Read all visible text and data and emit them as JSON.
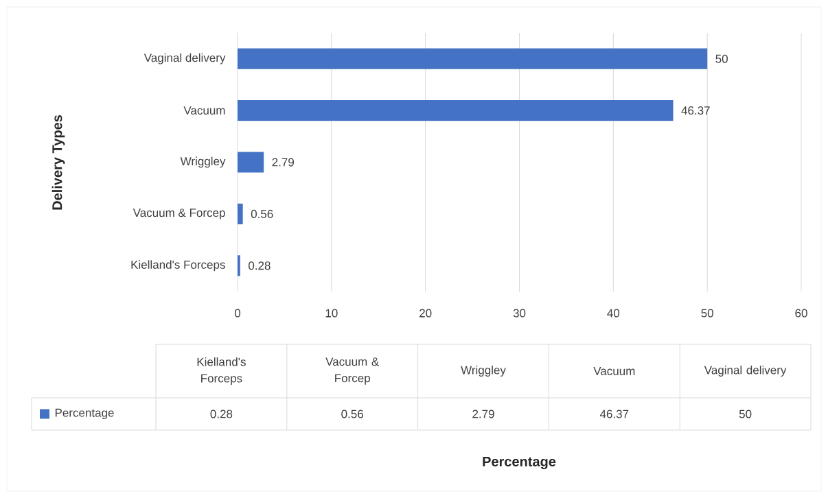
{
  "chart_data": [
    {
      "type": "bar",
      "orientation": "horizontal",
      "xlabel": "Percentage",
      "ylabel": "Delivery Types",
      "categories": [
        "Vaginal delivery",
        "Vacuum",
        "Wriggley",
        "Vacuum & Forcep",
        "Kielland's Forceps"
      ],
      "series": [
        {
          "color": "#4472c4",
          "values": [
            50,
            46.37,
            2.79,
            0.56,
            0.28
          ]
        }
      ],
      "xlim": [
        0,
        60
      ],
      "xticks": [
        0,
        10,
        20,
        30,
        40,
        50,
        60
      ],
      "grid": "x",
      "data_labels": true
    },
    {
      "type": "other",
      "categories": [
        "Kielland's Forceps",
        "Vacuum & Forcep",
        "Wriggley",
        "Vacuum",
        "Vaginal delivery"
      ],
      "series": [
        {
          "name": "Percentage",
          "color": "#4472c4",
          "values": [
            0.28,
            0.56,
            2.79,
            46.37,
            50
          ]
        }
      ],
      "data_labels": true,
      "legend": "left"
    }
  ]
}
